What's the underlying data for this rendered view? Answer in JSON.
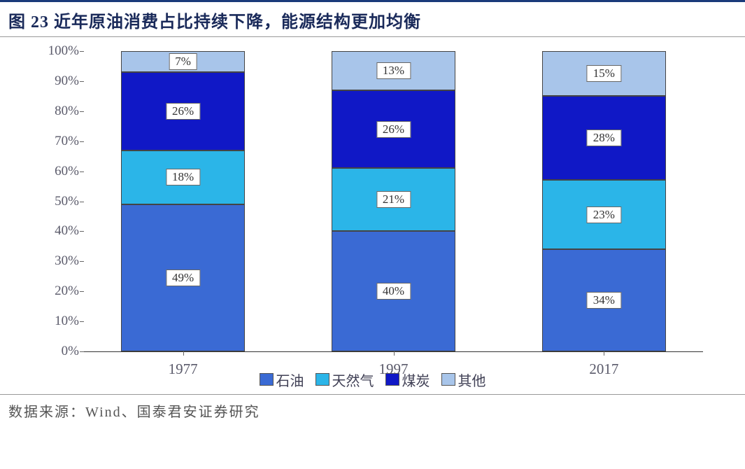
{
  "title": "图 23 近年原油消费占比持续下降，能源结构更加均衡",
  "source": "数据来源：Wind、国泰君安证券研究",
  "chart": {
    "type": "stacked-bar-100",
    "ylim": [
      0,
      100
    ],
    "ytick_step": 10,
    "ytick_suffix": "%",
    "categories": [
      "1977",
      "1997",
      "2017"
    ],
    "series": [
      {
        "name": "石油",
        "color": "#3a6ad4"
      },
      {
        "name": "天然气",
        "color": "#2bb5e8"
      },
      {
        "name": "煤炭",
        "color": "#1018c6"
      },
      {
        "name": "其他",
        "color": "#a8c5ea"
      }
    ],
    "values": [
      [
        49,
        18,
        26,
        7
      ],
      [
        40,
        21,
        26,
        13
      ],
      [
        34,
        23,
        28,
        15
      ]
    ],
    "bar_width_pct": 20,
    "bar_positions_pct": [
      16,
      50,
      84
    ],
    "label_fontsize": 17,
    "axis_fontsize": 20,
    "text_color": "#5a5a6a",
    "background": "#ffffff"
  }
}
